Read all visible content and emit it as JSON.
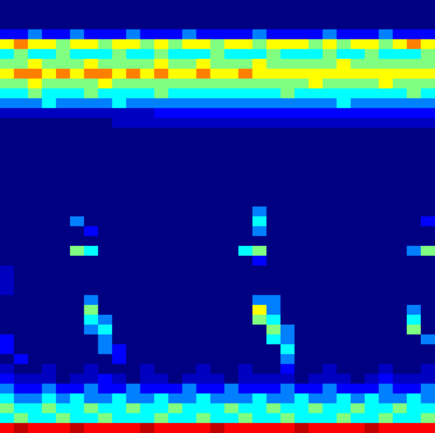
{
  "chart_data": {
    "type": "heatmap",
    "tick_labels": false,
    "grid": false,
    "zlim": [
      0,
      10
    ],
    "z": [
      [
        0,
        0,
        0,
        0,
        0,
        0,
        0,
        0,
        0,
        0,
        0,
        0,
        0,
        0,
        0,
        0,
        0,
        0,
        0,
        0,
        0,
        0,
        0,
        0,
        0,
        0,
        0,
        0,
        0,
        0,
        0
      ],
      [
        0,
        0,
        0,
        0,
        0,
        0,
        0,
        0,
        0,
        0,
        0,
        0,
        0,
        0,
        0,
        0,
        0,
        0,
        0,
        0,
        0,
        0,
        0,
        0,
        0,
        0,
        0,
        0,
        0,
        0,
        0
      ],
      [
        0,
        0,
        0,
        0,
        0,
        0,
        0,
        0,
        0,
        0,
        0,
        0,
        0,
        0,
        0,
        0,
        0,
        0,
        0,
        0,
        0,
        0,
        0,
        0,
        0,
        0,
        0,
        0,
        0,
        0,
        0
      ],
      [
        2,
        2,
        3,
        2,
        2,
        3,
        2,
        2,
        2,
        3,
        2,
        2,
        2,
        3,
        2,
        2,
        2,
        2,
        3,
        2,
        2,
        2,
        2,
        3,
        2,
        2,
        2,
        3,
        2,
        2,
        2
      ],
      [
        6,
        7,
        6,
        6,
        5,
        6,
        6,
        5,
        6,
        6,
        5,
        6,
        5,
        6,
        6,
        5,
        6,
        6,
        5,
        6,
        6,
        6,
        5,
        6,
        5,
        6,
        6,
        5,
        6,
        7,
        6
      ],
      [
        4,
        5,
        4,
        4,
        5,
        4,
        4,
        4,
        5,
        4,
        4,
        5,
        4,
        4,
        4,
        5,
        4,
        4,
        4,
        5,
        4,
        4,
        4,
        5,
        4,
        4,
        5,
        4,
        4,
        4,
        5
      ],
      [
        5,
        5,
        6,
        5,
        5,
        5,
        6,
        5,
        5,
        5,
        5,
        6,
        5,
        5,
        6,
        5,
        5,
        5,
        6,
        5,
        5,
        5,
        5,
        5,
        6,
        5,
        5,
        5,
        5,
        5,
        5
      ],
      [
        6,
        7,
        7,
        6,
        7,
        6,
        7,
        7,
        6,
        7,
        6,
        7,
        6,
        6,
        7,
        6,
        6,
        7,
        6,
        6,
        6,
        6,
        6,
        6,
        6,
        6,
        6,
        6,
        6,
        6,
        6
      ],
      [
        5,
        5,
        6,
        5,
        5,
        5,
        5,
        6,
        5,
        5,
        5,
        5,
        5,
        5,
        5,
        5,
        5,
        5,
        5,
        5,
        5,
        5,
        6,
        5,
        5,
        5,
        5,
        6,
        5,
        5,
        5
      ],
      [
        4,
        4,
        5,
        4,
        4,
        4,
        5,
        4,
        4,
        4,
        4,
        5,
        4,
        4,
        4,
        4,
        4,
        4,
        4,
        4,
        5,
        4,
        4,
        4,
        4,
        4,
        4,
        4,
        4,
        5,
        4
      ],
      [
        3,
        3,
        3,
        4,
        3,
        3,
        3,
        3,
        4,
        3,
        3,
        3,
        3,
        3,
        3,
        3,
        3,
        3,
        3,
        3,
        3,
        3,
        3,
        3,
        4,
        3,
        3,
        3,
        3,
        3,
        3
      ],
      [
        1,
        1,
        1,
        1,
        1,
        1,
        1,
        1,
        1,
        1,
        1,
        2,
        2,
        2,
        2,
        2,
        2,
        2,
        2,
        2,
        2,
        2,
        2,
        2,
        2,
        2,
        2,
        2,
        2,
        2,
        2
      ],
      [
        0,
        0,
        0,
        0,
        0,
        0,
        0,
        0,
        1,
        1,
        1,
        1,
        1,
        1,
        1,
        1,
        1,
        1,
        1,
        1,
        1,
        1,
        1,
        1,
        1,
        1,
        1,
        1,
        1,
        1,
        1
      ],
      [
        0,
        0,
        0,
        0,
        0,
        0,
        0,
        0,
        0,
        0,
        0,
        0,
        0,
        0,
        0,
        0,
        0,
        0,
        0,
        0,
        0,
        0,
        0,
        0,
        0,
        0,
        0,
        0,
        0,
        0,
        0
      ],
      [
        0,
        0,
        0,
        0,
        0,
        0,
        0,
        0,
        0,
        0,
        0,
        0,
        0,
        0,
        0,
        0,
        0,
        0,
        0,
        0,
        0,
        0,
        0,
        0,
        0,
        0,
        0,
        0,
        0,
        0,
        0
      ],
      [
        0,
        0,
        0,
        0,
        0,
        0,
        0,
        0,
        0,
        0,
        0,
        0,
        0,
        0,
        0,
        0,
        0,
        0,
        0,
        0,
        0,
        0,
        0,
        0,
        0,
        0,
        0,
        0,
        0,
        0,
        0
      ],
      [
        0,
        0,
        0,
        0,
        0,
        0,
        0,
        0,
        0,
        0,
        0,
        0,
        0,
        0,
        0,
        0,
        0,
        0,
        0,
        0,
        0,
        0,
        0,
        0,
        0,
        0,
        0,
        0,
        0,
        0,
        0
      ],
      [
        0,
        0,
        0,
        0,
        0,
        0,
        0,
        0,
        0,
        0,
        0,
        0,
        0,
        0,
        0,
        0,
        0,
        0,
        0,
        0,
        0,
        0,
        0,
        0,
        0,
        0,
        0,
        0,
        0,
        0,
        0
      ],
      [
        0,
        0,
        0,
        0,
        0,
        0,
        0,
        0,
        0,
        0,
        0,
        0,
        0,
        0,
        0,
        0,
        0,
        0,
        0,
        0,
        0,
        0,
        0,
        0,
        0,
        0,
        0,
        0,
        0,
        0,
        0
      ],
      [
        0,
        0,
        0,
        0,
        0,
        0,
        0,
        0,
        0,
        0,
        0,
        0,
        0,
        0,
        0,
        0,
        0,
        0,
        0,
        0,
        0,
        0,
        0,
        0,
        0,
        0,
        0,
        0,
        0,
        0,
        0
      ],
      [
        0,
        0,
        0,
        0,
        0,
        0,
        0,
        0,
        0,
        0,
        0,
        0,
        0,
        0,
        0,
        0,
        0,
        0,
        0,
        0,
        0,
        0,
        0,
        0,
        0,
        0,
        0,
        0,
        0,
        0,
        0
      ],
      [
        0,
        0,
        0,
        0,
        0,
        0,
        0,
        0,
        0,
        0,
        0,
        0,
        0,
        0,
        0,
        0,
        0,
        0,
        3,
        0,
        0,
        0,
        0,
        0,
        0,
        0,
        0,
        0,
        0,
        0,
        0
      ],
      [
        0,
        0,
        0,
        0,
        0,
        3,
        0,
        0,
        0,
        0,
        0,
        0,
        0,
        0,
        0,
        0,
        0,
        0,
        4,
        0,
        0,
        0,
        0,
        0,
        0,
        0,
        0,
        0,
        0,
        0,
        2
      ],
      [
        0,
        0,
        0,
        0,
        0,
        0,
        2,
        0,
        0,
        0,
        0,
        0,
        0,
        0,
        0,
        0,
        0,
        0,
        3,
        0,
        0,
        0,
        0,
        0,
        0,
        0,
        0,
        0,
        0,
        0,
        0
      ],
      [
        0,
        0,
        0,
        0,
        0,
        0,
        0,
        0,
        0,
        0,
        0,
        0,
        0,
        0,
        0,
        0,
        0,
        0,
        0,
        0,
        0,
        0,
        0,
        0,
        0,
        0,
        0,
        0,
        0,
        0,
        0
      ],
      [
        0,
        0,
        0,
        0,
        0,
        5,
        4,
        0,
        0,
        0,
        0,
        0,
        0,
        0,
        0,
        0,
        0,
        4,
        5,
        0,
        0,
        0,
        0,
        0,
        0,
        0,
        0,
        0,
        0,
        3,
        5
      ],
      [
        0,
        0,
        0,
        0,
        0,
        0,
        0,
        0,
        0,
        0,
        0,
        0,
        0,
        0,
        0,
        0,
        0,
        0,
        2,
        0,
        0,
        0,
        0,
        0,
        0,
        0,
        0,
        0,
        0,
        0,
        0
      ],
      [
        1,
        0,
        0,
        0,
        0,
        0,
        0,
        0,
        0,
        0,
        0,
        0,
        0,
        0,
        0,
        0,
        0,
        0,
        0,
        0,
        0,
        0,
        0,
        0,
        0,
        0,
        0,
        0,
        0,
        0,
        0
      ],
      [
        1,
        0,
        0,
        0,
        0,
        0,
        0,
        0,
        0,
        0,
        0,
        0,
        0,
        0,
        0,
        0,
        0,
        0,
        0,
        0,
        0,
        0,
        0,
        0,
        0,
        0,
        0,
        0,
        0,
        0,
        0
      ],
      [
        1,
        0,
        0,
        0,
        0,
        0,
        0,
        0,
        0,
        0,
        0,
        0,
        0,
        0,
        0,
        0,
        0,
        0,
        0,
        0,
        0,
        0,
        0,
        0,
        0,
        0,
        0,
        0,
        0,
        0,
        0
      ],
      [
        0,
        0,
        0,
        0,
        0,
        0,
        3,
        0,
        0,
        0,
        0,
        0,
        0,
        0,
        0,
        0,
        0,
        0,
        3,
        3,
        0,
        0,
        0,
        0,
        0,
        0,
        0,
        0,
        0,
        0,
        0
      ],
      [
        0,
        0,
        0,
        0,
        0,
        0,
        5,
        0,
        0,
        0,
        0,
        0,
        0,
        0,
        0,
        0,
        0,
        0,
        6,
        3,
        0,
        0,
        0,
        0,
        0,
        0,
        0,
        0,
        0,
        3,
        0
      ],
      [
        0,
        0,
        0,
        0,
        0,
        0,
        4,
        3,
        0,
        0,
        0,
        0,
        0,
        0,
        0,
        0,
        0,
        0,
        5,
        4,
        0,
        0,
        0,
        0,
        0,
        0,
        0,
        0,
        0,
        4,
        0
      ],
      [
        0,
        0,
        0,
        0,
        0,
        0,
        3,
        4,
        0,
        0,
        0,
        0,
        0,
        0,
        0,
        0,
        0,
        0,
        0,
        5,
        3,
        0,
        0,
        0,
        0,
        0,
        0,
        0,
        0,
        5,
        0
      ],
      [
        2,
        0,
        0,
        0,
        0,
        0,
        0,
        3,
        0,
        0,
        0,
        0,
        0,
        0,
        0,
        0,
        0,
        0,
        0,
        4,
        3,
        0,
        0,
        0,
        0,
        0,
        0,
        0,
        0,
        0,
        3
      ],
      [
        2,
        0,
        0,
        0,
        0,
        0,
        0,
        3,
        2,
        0,
        0,
        0,
        0,
        0,
        0,
        0,
        0,
        0,
        0,
        0,
        4,
        0,
        0,
        0,
        0,
        0,
        0,
        0,
        0,
        0,
        0
      ],
      [
        0,
        2,
        0,
        0,
        0,
        0,
        0,
        0,
        2,
        0,
        0,
        0,
        0,
        0,
        0,
        0,
        0,
        0,
        0,
        0,
        3,
        0,
        0,
        0,
        0,
        0,
        0,
        0,
        0,
        0,
        0
      ],
      [
        1,
        0,
        0,
        1,
        0,
        0,
        1,
        0,
        0,
        0,
        1,
        0,
        0,
        0,
        1,
        0,
        0,
        1,
        0,
        0,
        2,
        0,
        0,
        1,
        0,
        0,
        0,
        1,
        0,
        0,
        1
      ],
      [
        2,
        1,
        1,
        1,
        0,
        1,
        1,
        2,
        1,
        0,
        1,
        1,
        0,
        1,
        1,
        1,
        0,
        1,
        1,
        1,
        1,
        0,
        1,
        1,
        1,
        0,
        1,
        2,
        1,
        1,
        1
      ],
      [
        3,
        2,
        2,
        3,
        2,
        2,
        3,
        2,
        2,
        3,
        2,
        2,
        2,
        3,
        2,
        2,
        3,
        2,
        2,
        2,
        3,
        2,
        2,
        3,
        2,
        2,
        2,
        3,
        2,
        2,
        3
      ],
      [
        4,
        3,
        3,
        4,
        3,
        4,
        3,
        3,
        4,
        3,
        3,
        4,
        3,
        3,
        4,
        3,
        3,
        3,
        4,
        3,
        3,
        4,
        3,
        3,
        4,
        3,
        4,
        3,
        3,
        4,
        3
      ],
      [
        5,
        4,
        4,
        5,
        4,
        4,
        5,
        4,
        4,
        5,
        4,
        4,
        5,
        4,
        4,
        4,
        5,
        4,
        4,
        5,
        4,
        4,
        5,
        4,
        4,
        5,
        4,
        4,
        5,
        4,
        4
      ],
      [
        4,
        5,
        4,
        4,
        5,
        4,
        4,
        5,
        4,
        4,
        4,
        5,
        4,
        4,
        5,
        4,
        4,
        5,
        4,
        4,
        5,
        4,
        4,
        4,
        5,
        4,
        4,
        5,
        4,
        4,
        5
      ],
      [
        8,
        9,
        8,
        8,
        8,
        9,
        8,
        8,
        8,
        8,
        9,
        8,
        8,
        8,
        8,
        9,
        8,
        8,
        8,
        8,
        8,
        9,
        8,
        8,
        8,
        8,
        9,
        8,
        8,
        8,
        8
      ]
    ]
  }
}
